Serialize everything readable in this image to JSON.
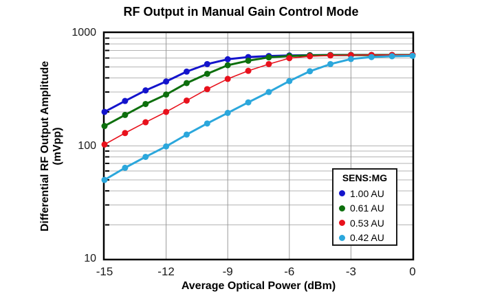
{
  "chart_data": {
    "type": "line",
    "title": "RF Output in Manual Gain Control Mode",
    "xlabel": "Average Optical Power (dBm)",
    "ylabel_line1": "Differential RF Output Amplitude",
    "ylabel_line2": "(mVpp)",
    "x_axis": {
      "min": -15,
      "max": 0,
      "ticks": [
        -15,
        -12,
        -9,
        -6,
        -3,
        0
      ],
      "tick_labels": [
        "-15",
        "-12",
        "-9",
        "-6",
        "-3",
        "0"
      ]
    },
    "y_axis": {
      "scale": "log",
      "min": 10,
      "max": 1000,
      "ticks": [
        1000,
        100,
        10
      ],
      "tick_labels": [
        "1000",
        "100",
        "10"
      ]
    },
    "grid": {
      "vertical_lines": [
        -12,
        -9,
        -6,
        -3
      ],
      "horizontal_lines": [
        20,
        30,
        40,
        50,
        60,
        70,
        80,
        90,
        100,
        200,
        300,
        400,
        500,
        600,
        700,
        800,
        900
      ],
      "vertical_color": "#999999",
      "horizontal_color": "#b3b3b3",
      "border_color": "#000000"
    },
    "legend": {
      "title": "SENS:MG",
      "position": "lower-right"
    },
    "x": [
      -15,
      -14,
      -13,
      -12,
      -11,
      -10,
      -9,
      -8,
      -7,
      -6,
      -5,
      -4,
      -3,
      -2,
      -1,
      0
    ],
    "series": [
      {
        "name": "1.00 AU",
        "color": "#1414CC",
        "line_width": 3,
        "values": [
          200,
          250,
          310,
          372,
          455,
          530,
          585,
          612,
          625,
          632,
          636,
          638,
          638,
          638,
          638,
          638
        ]
      },
      {
        "name": "0.61 AU",
        "color": "#0D6F0D",
        "line_width": 3,
        "values": [
          150,
          188,
          235,
          285,
          360,
          435,
          518,
          568,
          608,
          625,
          633,
          637,
          638,
          638,
          638,
          638
        ]
      },
      {
        "name": "0.53 AU",
        "color": "#E8111C",
        "line_width": 1.6,
        "values": [
          103,
          130,
          162,
          200,
          252,
          318,
          392,
          462,
          530,
          598,
          622,
          632,
          636,
          638,
          638,
          638
        ]
      },
      {
        "name": "0.42 AU",
        "color": "#2BA7DC",
        "line_width": 3,
        "values": [
          50,
          64,
          80,
          99,
          126,
          158,
          196,
          243,
          300,
          375,
          458,
          530,
          588,
          612,
          622,
          627
        ]
      }
    ]
  }
}
